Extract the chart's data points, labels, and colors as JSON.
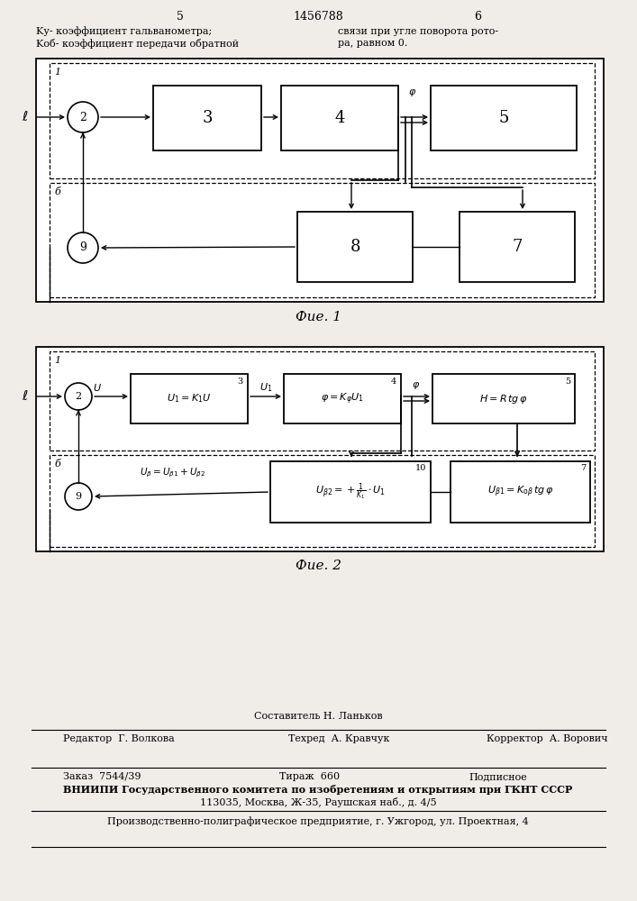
{
  "page_number_left": "5",
  "page_number_right": "6",
  "patent_number": "1456788",
  "header_left1": "Kу- коэффициент гальванометра;",
  "header_left2": "Kоб- коэффициент передачи обратной",
  "header_right1": "связи при угле поворота рото-",
  "header_right2": "ра, равном 0.",
  "fig1_caption": "Фие. 1",
  "fig2_caption": "Фие. 2",
  "sestavitel": "Составитель Н. Ланьков",
  "redaktor": "Редактор  Г. Волкова",
  "tekhred": "Техред  А. Кравчук",
  "korrektor": "Корректор  А. Ворович",
  "zakaz": "Заказ  7544/39",
  "tirazh": "Тираж  660",
  "podpisnoe": "Подписное",
  "vniip1": "ВНИИПИ Государственного комитета по изобретениям и открытиям при ГКНТ СССР",
  "vniip2": "113035, Москва, Ж-35, Раушская наб., д. 4/5",
  "proizv": "Производственно-полиграфическое предприятие, г. Ужгород, ул. Проектная, 4",
  "bg_color": "#f0ede8"
}
